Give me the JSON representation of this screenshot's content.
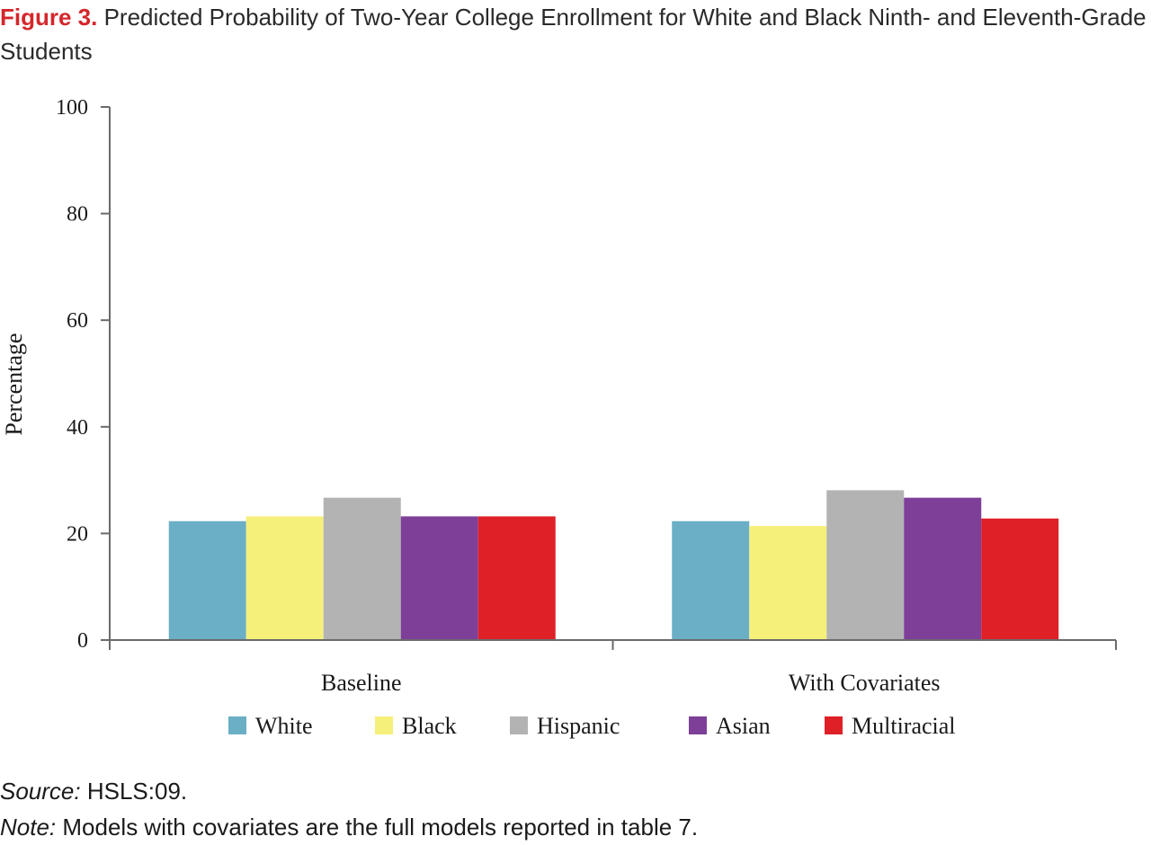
{
  "figure": {
    "label": "Figure 3.",
    "title": "Predicted Probability of Two-Year College Enrollment for White and Black Ninth- and Eleventh-Grade Students"
  },
  "notes": {
    "source_label": "Source:",
    "source_text": "HSLS:09.",
    "note_label": "Note:",
    "note_text": "Models with covariates are the full models reported in table 7."
  },
  "chart_data": {
    "type": "bar",
    "title": "",
    "xlabel": "",
    "ylabel": "Percentage",
    "ylim": [
      0,
      100
    ],
    "yticks": [
      0,
      20,
      40,
      60,
      80,
      100
    ],
    "grid": false,
    "legend_position": "bottom",
    "categories": [
      "Baseline",
      "With Covariates"
    ],
    "series": [
      {
        "name": "White",
        "color": "#6aafc6",
        "values": [
          22.3,
          22.3
        ]
      },
      {
        "name": "Black",
        "color": "#f5f07a",
        "values": [
          23.2,
          21.4
        ]
      },
      {
        "name": "Hispanic",
        "color": "#b3b3b3",
        "values": [
          26.7,
          28.1
        ]
      },
      {
        "name": "Asian",
        "color": "#7d3f98",
        "values": [
          23.2,
          26.7
        ]
      },
      {
        "name": "Multiracial",
        "color": "#df2027",
        "values": [
          23.2,
          22.8
        ]
      }
    ]
  }
}
